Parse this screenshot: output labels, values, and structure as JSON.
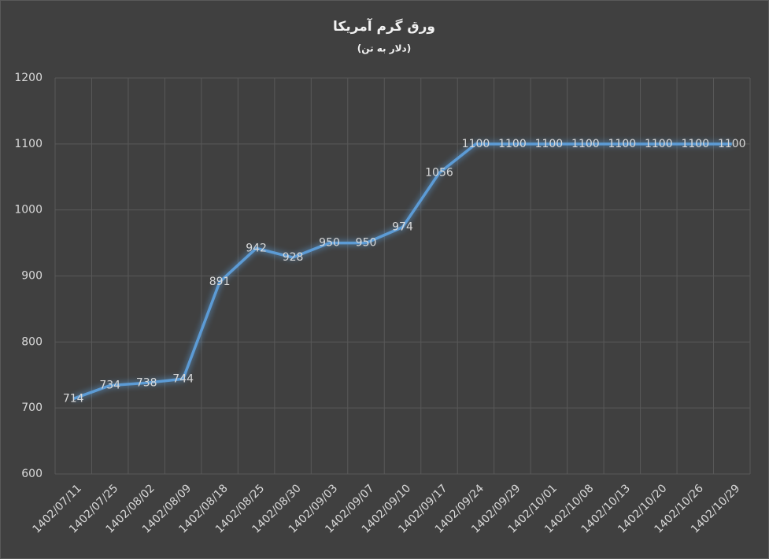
{
  "chart_data": {
    "type": "line",
    "title": "ورق گرم آمریکا",
    "subtitle": "(دلار به تن)",
    "categories": [
      "1402/07/11",
      "1402/07/25",
      "1402/08/02",
      "1402/08/09",
      "1402/08/18",
      "1402/08/25",
      "1402/08/30",
      "1402/09/03",
      "1402/09/07",
      "1402/09/10",
      "1402/09/17",
      "1402/09/24",
      "1402/09/29",
      "1402/10/01",
      "1402/10/08",
      "1402/10/13",
      "1402/10/20",
      "1402/10/26",
      "1402/10/29"
    ],
    "series": [
      {
        "name": "ورق گرم آمریکا",
        "color": "#5b9bd5",
        "values": [
          714,
          734,
          738,
          744,
          891,
          942,
          928,
          950,
          950,
          974,
          1056,
          1100,
          1100,
          1100,
          1100,
          1100,
          1100,
          1100,
          1100
        ]
      }
    ],
    "ylim": [
      600,
      1200
    ],
    "yticks": [
      600,
      700,
      800,
      900,
      1000,
      1100,
      1200
    ],
    "grid": true
  }
}
